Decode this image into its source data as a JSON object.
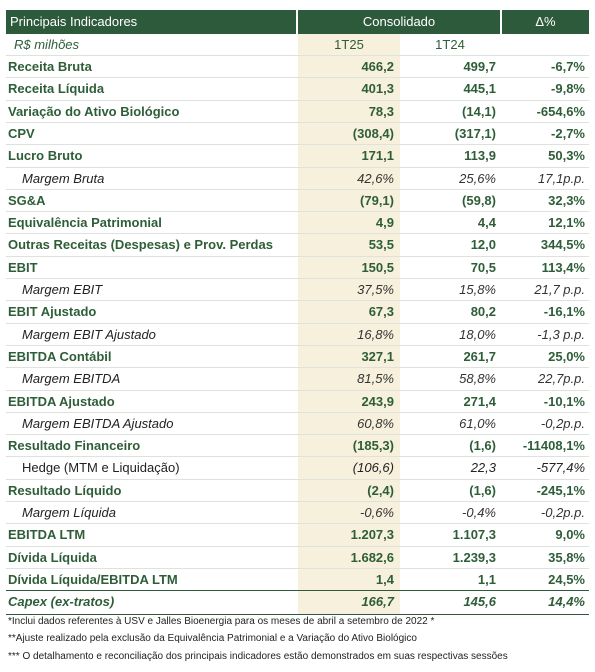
{
  "header": {
    "title": "Principais Indicadores",
    "group": "Consolidado",
    "delta": "Δ%"
  },
  "subheader": {
    "unit": "R$ milhões",
    "col1": "1T25",
    "col2": "1T24"
  },
  "table": {
    "rows": [
      [
        "Receita Bruta",
        "466,2",
        "499,7",
        "-6,7%"
      ],
      [
        "Receita Líquida",
        "401,3",
        "445,1",
        "-9,8%"
      ],
      [
        "Variação do Ativo Biológico",
        "78,3",
        "(14,1)",
        "-654,6%"
      ],
      [
        "CPV",
        "(308,4)",
        "(317,1)",
        "-2,7%"
      ],
      [
        "Lucro Bruto",
        "171,1",
        "113,9",
        "50,3%"
      ],
      [
        "Margem Bruta",
        "42,6%",
        "25,6%",
        "17,1p.p."
      ],
      [
        "SG&A",
        "(79,1)",
        "(59,8)",
        "32,3%"
      ],
      [
        "Equivalência Patrimonial",
        "4,9",
        "4,4",
        "12,1%"
      ],
      [
        "Outras Receitas (Despesas) e Prov. Perdas",
        "53,5",
        "12,0",
        "344,5%"
      ],
      [
        "EBIT",
        "150,5",
        "70,5",
        "113,4%"
      ],
      [
        "Margem EBIT",
        "37,5%",
        "15,8%",
        "21,7 p.p."
      ],
      [
        "EBIT Ajustado",
        "67,3",
        "80,2",
        "-16,1%"
      ],
      [
        "Margem EBIT Ajustado",
        "16,8%",
        "18,0%",
        "-1,3 p.p."
      ],
      [
        "EBITDA Contábil",
        "327,1",
        "261,7",
        "25,0%"
      ],
      [
        "Margem EBITDA",
        "81,5%",
        "58,8%",
        "22,7p.p."
      ],
      [
        "EBITDA Ajustado",
        "243,9",
        "271,4",
        "-10,1%"
      ],
      [
        "Margem EBITDA Ajustado",
        "60,8%",
        "61,0%",
        "-0,2p.p."
      ],
      [
        "Resultado Financeiro",
        "(185,3)",
        "(1,6)",
        "-11408,1%"
      ],
      [
        "Hedge (MTM e Liquidação)",
        "(106,6)",
        "22,3",
        "-577,4%"
      ],
      [
        "Resultado Líquido",
        "(2,4)",
        "(1,6)",
        "-245,1%"
      ],
      [
        "Margem Líquida",
        "-0,6%",
        "-0,4%",
        "-0,2p.p."
      ],
      [
        "EBITDA LTM",
        "1.207,3",
        "1.107,3",
        "9,0%"
      ],
      [
        "Dívida Líquida",
        "1.682,6",
        "1.239,3",
        "35,8%"
      ],
      [
        "Dívida Líquida/EBITDA LTM",
        "1,4",
        "1,1",
        "24,5%"
      ],
      [
        "Capex (ex-tratos)",
        "166,7",
        "145,6",
        "14,4%"
      ]
    ]
  },
  "footnotes": [
    "*Inclui dados referentes à USV e Jalles Bioenergia para os meses de abril a setembro de 2022 *",
    "**Ajuste realizado pela exclusão da Equivalência Patrimonial e a Variação do Ativo Biológico",
    "*** O detalhamento e reconciliação dos principais indicadores estão demonstrados em suas respectivas sessões"
  ]
}
